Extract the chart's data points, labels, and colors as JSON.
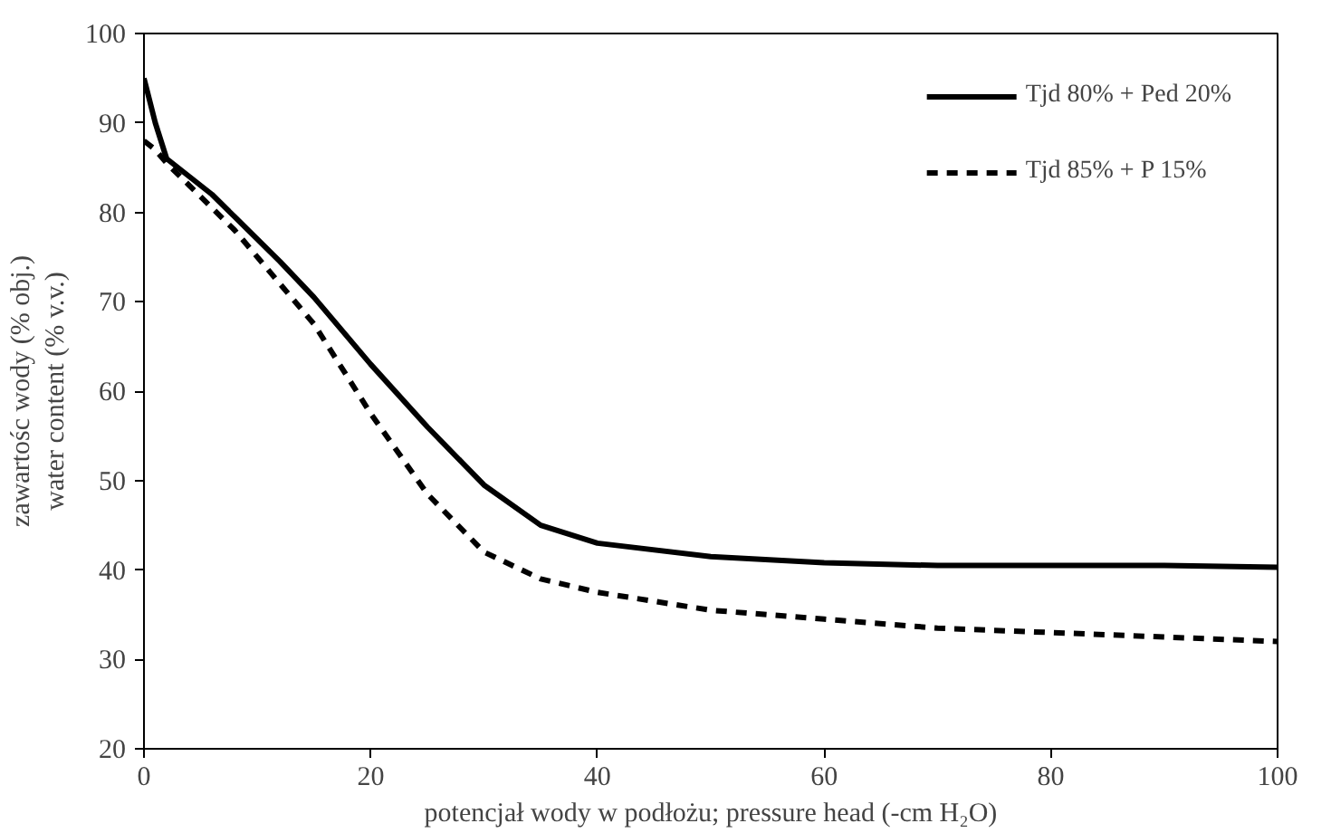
{
  "chart_data": {
    "type": "line",
    "xlabel": "potencjał wody w podłożu; pressure head (-cm H₂O)",
    "ylabel": "zawartośc wody (% obj.)\nwater content (% v.v.)",
    "x": [
      0,
      1,
      2,
      4,
      6,
      8,
      10,
      12,
      15,
      20,
      25,
      30,
      35,
      40,
      50,
      60,
      70,
      80,
      90,
      100
    ],
    "series": [
      {
        "name": "Tjd 80% + Ped 20%",
        "color": "#000000",
        "line_style": "solid",
        "values": [
          95,
          90,
          86,
          84,
          82,
          79.5,
          77,
          74.5,
          70.5,
          63,
          56,
          49.5,
          45,
          43,
          41.5,
          40.8,
          40.5,
          40.5,
          40.5,
          40.3
        ]
      },
      {
        "name": "Tjd 85% + P 15%",
        "color": "#000000",
        "line_style": "dashed",
        "values": [
          88,
          87,
          85.5,
          83,
          80.5,
          78,
          75,
          72,
          67.5,
          57.5,
          48.5,
          42,
          39,
          37.5,
          35.5,
          34.5,
          33.5,
          33,
          32.5,
          32
        ]
      }
    ],
    "xlim": [
      0,
      100
    ],
    "xticks": [
      0,
      20,
      40,
      60,
      80,
      100
    ],
    "ylim": [
      20,
      100
    ],
    "yticks": [
      20,
      30,
      40,
      50,
      60,
      70,
      80,
      90,
      100
    ],
    "grid": false,
    "legend": "top right",
    "marker": "none"
  }
}
